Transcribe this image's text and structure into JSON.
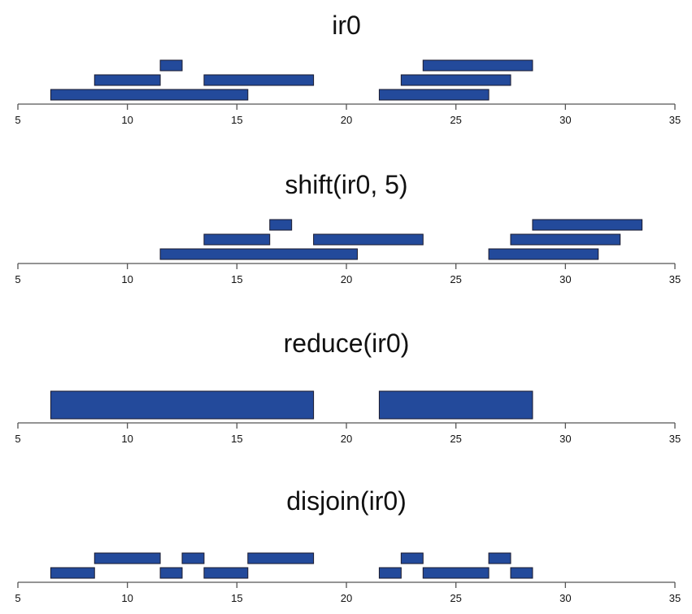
{
  "chart_data": [
    {
      "type": "range",
      "title": "ir0",
      "xlim": [
        5,
        35
      ],
      "ticks": [
        5,
        10,
        15,
        20,
        25,
        30,
        35
      ],
      "bar_color": "#234a9b",
      "ranges": [
        {
          "start": 7,
          "end": 15,
          "row": 0
        },
        {
          "start": 9,
          "end": 11,
          "row": 1
        },
        {
          "start": 12,
          "end": 12,
          "row": 2
        },
        {
          "start": 14,
          "end": 18,
          "row": 1
        },
        {
          "start": 22,
          "end": 26,
          "row": 0
        },
        {
          "start": 23,
          "end": 27,
          "row": 1
        },
        {
          "start": 24,
          "end": 28,
          "row": 2
        }
      ]
    },
    {
      "type": "range",
      "title": "shift(ir0, 5)",
      "xlim": [
        5,
        35
      ],
      "ticks": [
        5,
        10,
        15,
        20,
        25,
        30,
        35
      ],
      "bar_color": "#234a9b",
      "ranges": [
        {
          "start": 12,
          "end": 20,
          "row": 0
        },
        {
          "start": 14,
          "end": 16,
          "row": 1
        },
        {
          "start": 17,
          "end": 17,
          "row": 2
        },
        {
          "start": 19,
          "end": 23,
          "row": 1
        },
        {
          "start": 27,
          "end": 31,
          "row": 0
        },
        {
          "start": 28,
          "end": 32,
          "row": 1
        },
        {
          "start": 29,
          "end": 33,
          "row": 2
        }
      ]
    },
    {
      "type": "range",
      "title": "reduce(ir0)",
      "xlim": [
        5,
        35
      ],
      "ticks": [
        5,
        10,
        15,
        20,
        25,
        30,
        35
      ],
      "bar_color": "#234a9b",
      "ranges": [
        {
          "start": 7,
          "end": 18,
          "row": 0
        },
        {
          "start": 22,
          "end": 28,
          "row": 0
        }
      ]
    },
    {
      "type": "range",
      "title": "disjoin(ir0)",
      "xlim": [
        5,
        35
      ],
      "ticks": [
        5,
        10,
        15,
        20,
        25,
        30,
        35
      ],
      "bar_color": "#234a9b",
      "ranges": [
        {
          "start": 7,
          "end": 8,
          "row": 0
        },
        {
          "start": 9,
          "end": 11,
          "row": 1
        },
        {
          "start": 12,
          "end": 12,
          "row": 0
        },
        {
          "start": 13,
          "end": 13,
          "row": 1
        },
        {
          "start": 14,
          "end": 15,
          "row": 0
        },
        {
          "start": 16,
          "end": 18,
          "row": 1
        },
        {
          "start": 22,
          "end": 22,
          "row": 0
        },
        {
          "start": 23,
          "end": 23,
          "row": 1
        },
        {
          "start": 24,
          "end": 26,
          "row": 0
        },
        {
          "start": 27,
          "end": 27,
          "row": 1
        },
        {
          "start": 28,
          "end": 28,
          "row": 0
        }
      ]
    }
  ]
}
